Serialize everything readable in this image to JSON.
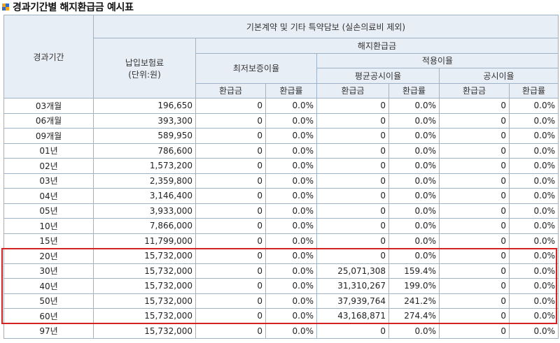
{
  "title": "경과기간별 해지환급금 예시표",
  "headers": {
    "period": "경과기간",
    "group_main": "기본계약 및 기타 특약담보 (실손의료비 제외)",
    "premium_line1": "납입보험료",
    "premium_line2": "(단위:원)",
    "refund": "해지환급금",
    "min_guarantee": "최저보증이율",
    "applied_rate": "적용이율",
    "avg_public": "평균공시이율",
    "public": "공시이율",
    "refund_amount": "환급금",
    "refund_rate": "환급률"
  },
  "rows": [
    [
      "03개월",
      "196,650",
      "0",
      "0.0%",
      "0",
      "0.0%",
      "0",
      "0.0%"
    ],
    [
      "06개월",
      "393,300",
      "0",
      "0.0%",
      "0",
      "0.0%",
      "0",
      "0.0%"
    ],
    [
      "09개월",
      "589,950",
      "0",
      "0.0%",
      "0",
      "0.0%",
      "0",
      "0.0%"
    ],
    [
      "01년",
      "786,600",
      "0",
      "0.0%",
      "0",
      "0.0%",
      "0",
      "0.0%"
    ],
    [
      "02년",
      "1,573,200",
      "0",
      "0.0%",
      "0",
      "0.0%",
      "0",
      "0.0%"
    ],
    [
      "03년",
      "2,359,800",
      "0",
      "0.0%",
      "0",
      "0.0%",
      "0",
      "0.0%"
    ],
    [
      "04년",
      "3,146,400",
      "0",
      "0.0%",
      "0",
      "0.0%",
      "0",
      "0.0%"
    ],
    [
      "05년",
      "3,933,000",
      "0",
      "0.0%",
      "0",
      "0.0%",
      "0",
      "0.0%"
    ],
    [
      "10년",
      "7,866,000",
      "0",
      "0.0%",
      "0",
      "0.0%",
      "0",
      "0.0%"
    ],
    [
      "15년",
      "11,799,000",
      "0",
      "0.0%",
      "0",
      "0.0%",
      "0",
      "0.0%"
    ],
    [
      "20년",
      "15,732,000",
      "0",
      "0.0%",
      "0",
      "0.0%",
      "0",
      "0.0%"
    ],
    [
      "30년",
      "15,732,000",
      "0",
      "0.0%",
      "25,071,308",
      "159.4%",
      "0",
      "0.0%"
    ],
    [
      "40년",
      "15,732,000",
      "0",
      "0.0%",
      "31,310,267",
      "199.0%",
      "0",
      "0.0%"
    ],
    [
      "50년",
      "15,732,000",
      "0",
      "0.0%",
      "37,939,764",
      "241.2%",
      "0",
      "0.0%"
    ],
    [
      "60년",
      "15,732,000",
      "0",
      "0.0%",
      "43,168,871",
      "274.4%",
      "0",
      "0.0%"
    ],
    [
      "97년",
      "15,732,000",
      "0",
      "0.0%",
      "0",
      "0.0%",
      "0",
      "0.0%"
    ]
  ],
  "highlight": {
    "rows": [
      "20년",
      "30년",
      "40년",
      "50년",
      "60년"
    ],
    "color": "#d42121"
  },
  "colors": {
    "header_bg": "#e8eef6",
    "border": "#9fb3c8"
  }
}
